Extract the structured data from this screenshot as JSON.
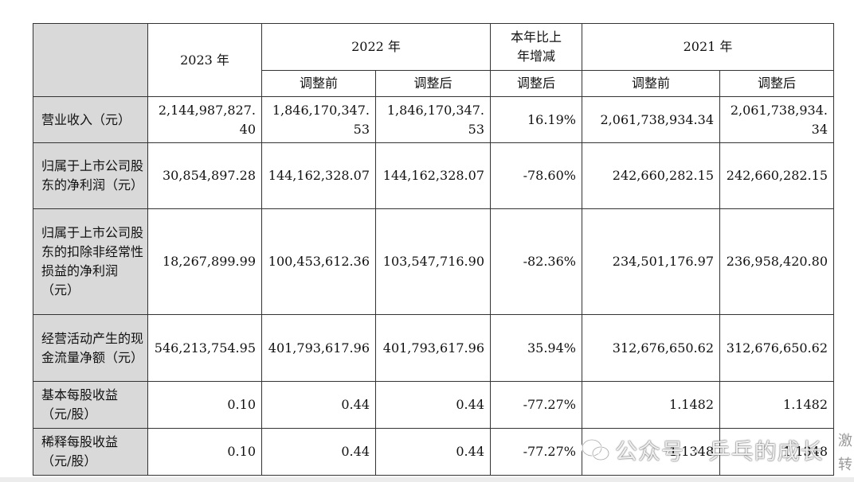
{
  "header": {
    "col_2023": "2023 年",
    "col_2022": "2022 年",
    "col_change_line1": "本年比上",
    "col_change_line2": "年增减",
    "col_2021": "2021 年",
    "sub_before_2022": "调整前",
    "sub_after_2022": "调整后",
    "sub_change": "调整后",
    "sub_before_2021": "调整前",
    "sub_after_2021": "调整后"
  },
  "rows": [
    {
      "label": "营业收入（元）",
      "y2023": "2,144,987,827.40",
      "y2022_before": "1,846,170,347.53",
      "y2022_after": "1,846,170,347.53",
      "change": "16.19%",
      "y2021_before": "2,061,738,934.34",
      "y2021_after": "2,061,738,934.34"
    },
    {
      "label": "归属于上市公司股东的净利润（元）",
      "y2023": "30,854,897.28",
      "y2022_before": "144,162,328.07",
      "y2022_after": "144,162,328.07",
      "change": "-78.60%",
      "y2021_before": "242,660,282.15",
      "y2021_after": "242,660,282.15"
    },
    {
      "label": "归属于上市公司股东的扣除非经常性损益的净利润（元）",
      "y2023": "18,267,899.99",
      "y2022_before": "100,453,612.36",
      "y2022_after": "103,547,716.90",
      "change": "-82.36%",
      "y2021_before": "234,501,176.97",
      "y2021_after": "236,958,420.80"
    },
    {
      "label": "经营活动产生的现金流量净额（元）",
      "y2023": "546,213,754.95",
      "y2022_before": "401,793,617.96",
      "y2022_after": "401,793,617.96",
      "change": "35.94%",
      "y2021_before": "312,676,650.62",
      "y2021_after": "312,676,650.62"
    },
    {
      "label": "基本每股收益（元/股）",
      "y2023": "0.10",
      "y2022_before": "0.44",
      "y2022_after": "0.44",
      "change": "-77.27%",
      "y2021_before": "1.1482",
      "y2021_after": "1.1482"
    },
    {
      "label": "稀释每股收益（元/股）",
      "y2023": "0.10",
      "y2022_before": "0.44",
      "y2022_after": "0.44",
      "change": "-77.27%",
      "y2021_before": "1.1348",
      "y2021_after": "1.1348"
    }
  ],
  "watermark": {
    "text": "公众号 · 乒乓的成长",
    "side_text": "激转",
    "icon": "wechat-icon"
  }
}
